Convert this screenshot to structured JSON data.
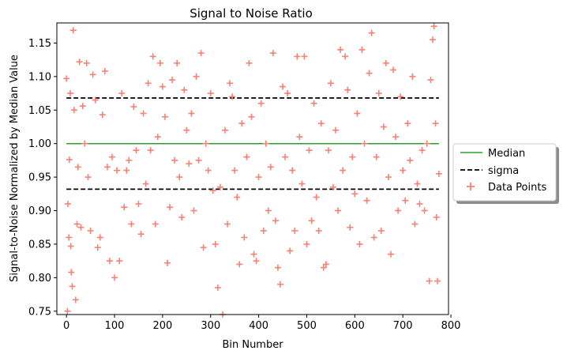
{
  "chart_data": {
    "type": "scatter",
    "title": "Signal to Noise Ratio",
    "xlabel": "Bin Number",
    "ylabel": "Signal-to-Noise Normalized by Median Value",
    "xlim": [
      -20,
      795
    ],
    "ylim": [
      0.745,
      1.18
    ],
    "xticks": [
      0,
      100,
      200,
      300,
      400,
      500,
      600,
      700,
      800
    ],
    "yticks": [
      0.75,
      0.8,
      0.85,
      0.9,
      0.95,
      1.0,
      1.05,
      1.1,
      1.15
    ],
    "grid": false,
    "legend_position": "outside-right",
    "lines": [
      {
        "name": "Median",
        "y": 1.0,
        "x_range": [
          0,
          775
        ],
        "color": "#2ca02c",
        "style": "solid"
      },
      {
        "name": "sigma",
        "y": 1.068,
        "x_range": [
          0,
          775
        ],
        "color": "#000000",
        "style": "dashed"
      },
      {
        "name": "sigma",
        "y": 0.932,
        "x_range": [
          0,
          775
        ],
        "color": "#000000",
        "style": "dashed"
      }
    ],
    "series": [
      {
        "name": "Data Points",
        "marker": "+",
        "color": "#fa8072",
        "points": [
          [
            0,
            1.097
          ],
          [
            2,
            0.75
          ],
          [
            3,
            0.91
          ],
          [
            5,
            0.86
          ],
          [
            6,
            0.976
          ],
          [
            8,
            1.075
          ],
          [
            9,
            0.847
          ],
          [
            10,
            0.808
          ],
          [
            12,
            0.787
          ],
          [
            14,
            1.169
          ],
          [
            16,
            1.05
          ],
          [
            19,
            0.767
          ],
          [
            22,
            0.88
          ],
          [
            24,
            0.965
          ],
          [
            27,
            1.122
          ],
          [
            30,
            0.875
          ],
          [
            34,
            1.056
          ],
          [
            38,
            1.0
          ],
          [
            42,
            1.12
          ],
          [
            45,
            0.95
          ],
          [
            50,
            0.87
          ],
          [
            55,
            1.103
          ],
          [
            60,
            1.065
          ],
          [
            65,
            0.845
          ],
          [
            70,
            0.86
          ],
          [
            75,
            1.043
          ],
          [
            80,
            1.108
          ],
          [
            85,
            0.965
          ],
          [
            90,
            0.825
          ],
          [
            95,
            0.98
          ],
          [
            100,
            0.8
          ],
          [
            105,
            0.96
          ],
          [
            110,
            0.825
          ],
          [
            115,
            1.075
          ],
          [
            120,
            0.905
          ],
          [
            125,
            0.96
          ],
          [
            130,
            0.975
          ],
          [
            135,
            0.88
          ],
          [
            140,
            1.055
          ],
          [
            145,
            0.99
          ],
          [
            150,
            0.91
          ],
          [
            155,
            0.865
          ],
          [
            160,
            1.045
          ],
          [
            165,
            0.94
          ],
          [
            170,
            1.09
          ],
          [
            175,
            0.99
          ],
          [
            180,
            1.13
          ],
          [
            185,
            0.88
          ],
          [
            190,
            1.01
          ],
          [
            195,
            1.12
          ],
          [
            200,
            1.085
          ],
          [
            205,
            1.04
          ],
          [
            210,
            0.822
          ],
          [
            215,
            0.905
          ],
          [
            220,
            1.095
          ],
          [
            225,
            0.975
          ],
          [
            230,
            1.12
          ],
          [
            235,
            0.95
          ],
          [
            240,
            0.89
          ],
          [
            245,
            1.08
          ],
          [
            250,
            1.02
          ],
          [
            255,
            0.97
          ],
          [
            260,
            1.045
          ],
          [
            265,
            0.9
          ],
          [
            270,
            1.1
          ],
          [
            275,
            0.975
          ],
          [
            280,
            1.135
          ],
          [
            285,
            0.845
          ],
          [
            290,
            1.0
          ],
          [
            295,
            0.96
          ],
          [
            300,
            1.075
          ],
          [
            305,
            0.93
          ],
          [
            310,
            0.85
          ],
          [
            315,
            0.785
          ],
          [
            320,
            0.935
          ],
          [
            325,
            0.745
          ],
          [
            330,
            1.02
          ],
          [
            335,
            0.88
          ],
          [
            340,
            1.09
          ],
          [
            345,
            1.07
          ],
          [
            350,
            0.96
          ],
          [
            355,
            0.92
          ],
          [
            360,
            0.82
          ],
          [
            365,
            1.03
          ],
          [
            370,
            0.86
          ],
          [
            375,
            0.98
          ],
          [
            380,
            1.12
          ],
          [
            385,
            1.04
          ],
          [
            390,
            0.835
          ],
          [
            395,
            0.825
          ],
          [
            400,
            0.95
          ],
          [
            405,
            1.06
          ],
          [
            410,
            0.87
          ],
          [
            415,
            1.0
          ],
          [
            420,
            0.9
          ],
          [
            425,
            0.965
          ],
          [
            430,
            1.135
          ],
          [
            435,
            0.885
          ],
          [
            440,
            0.815
          ],
          [
            445,
            0.79
          ],
          [
            450,
            1.085
          ],
          [
            455,
            0.98
          ],
          [
            460,
            1.075
          ],
          [
            465,
            0.84
          ],
          [
            470,
            0.96
          ],
          [
            475,
            0.87
          ],
          [
            480,
            1.13
          ],
          [
            485,
            1.01
          ],
          [
            490,
            0.94
          ],
          [
            495,
            1.13
          ],
          [
            500,
            0.85
          ],
          [
            505,
            0.99
          ],
          [
            510,
            0.885
          ],
          [
            515,
            1.06
          ],
          [
            520,
            0.92
          ],
          [
            525,
            0.87
          ],
          [
            530,
            1.03
          ],
          [
            535,
            0.815
          ],
          [
            540,
            0.82
          ],
          [
            545,
            0.99
          ],
          [
            550,
            1.09
          ],
          [
            555,
            0.935
          ],
          [
            560,
            1.02
          ],
          [
            565,
            0.9
          ],
          [
            570,
            1.14
          ],
          [
            575,
            0.96
          ],
          [
            580,
            1.13
          ],
          [
            585,
            1.08
          ],
          [
            590,
            0.875
          ],
          [
            595,
            0.98
          ],
          [
            600,
            0.925
          ],
          [
            605,
            1.045
          ],
          [
            610,
            0.85
          ],
          [
            615,
            1.14
          ],
          [
            620,
            1.0
          ],
          [
            625,
            0.915
          ],
          [
            630,
            1.105
          ],
          [
            635,
            1.165
          ],
          [
            640,
            0.86
          ],
          [
            645,
            0.98
          ],
          [
            650,
            1.075
          ],
          [
            655,
            0.87
          ],
          [
            660,
            1.025
          ],
          [
            665,
            1.12
          ],
          [
            670,
            0.95
          ],
          [
            675,
            0.835
          ],
          [
            680,
            1.11
          ],
          [
            685,
            1.01
          ],
          [
            690,
            0.9
          ],
          [
            695,
            1.07
          ],
          [
            700,
            0.96
          ],
          [
            705,
            0.915
          ],
          [
            710,
            1.03
          ],
          [
            715,
            0.975
          ],
          [
            720,
            1.1
          ],
          [
            725,
            0.88
          ],
          [
            730,
            0.94
          ],
          [
            735,
            0.91
          ],
          [
            740,
            0.99
          ],
          [
            745,
            0.9
          ],
          [
            750,
            1.0
          ],
          [
            755,
            0.795
          ],
          [
            758,
            1.095
          ],
          [
            762,
            1.155
          ],
          [
            765,
            1.175
          ],
          [
            768,
            1.03
          ],
          [
            770,
            0.89
          ],
          [
            772,
            0.795
          ],
          [
            775,
            0.955
          ]
        ]
      }
    ],
    "legend": [
      {
        "label": "Median",
        "kind": "line-solid",
        "color": "#2ca02c"
      },
      {
        "label": "sigma",
        "kind": "line-dashed",
        "color": "#000000"
      },
      {
        "label": "Data Points",
        "kind": "marker-plus",
        "color": "#fa8072"
      }
    ]
  }
}
